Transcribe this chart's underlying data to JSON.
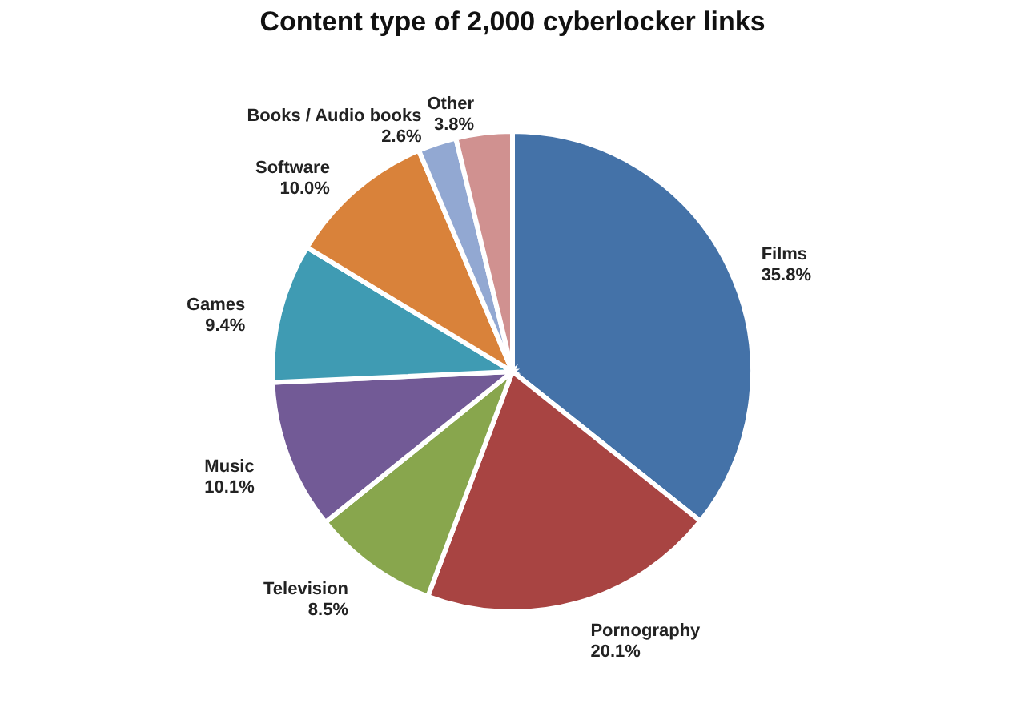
{
  "chart_data": {
    "type": "pie",
    "title": "Content type of 2,000 cyberlocker links",
    "categories": [
      "Films",
      "Pornography",
      "Television",
      "Music",
      "Games",
      "Software",
      "Books / Audio books",
      "Other"
    ],
    "values": [
      35.8,
      20.1,
      8.5,
      10.1,
      9.4,
      10.0,
      2.6,
      3.8
    ],
    "value_labels": [
      "35.8%",
      "20.1%",
      "8.5%",
      "10.1%",
      "9.4%",
      "10.0%",
      "2.6%",
      "3.8%"
    ],
    "colors": [
      "#4472a8",
      "#a84442",
      "#88a64d",
      "#725a96",
      "#3f9bb3",
      "#d9823a",
      "#92a8d2",
      "#d09190"
    ]
  }
}
